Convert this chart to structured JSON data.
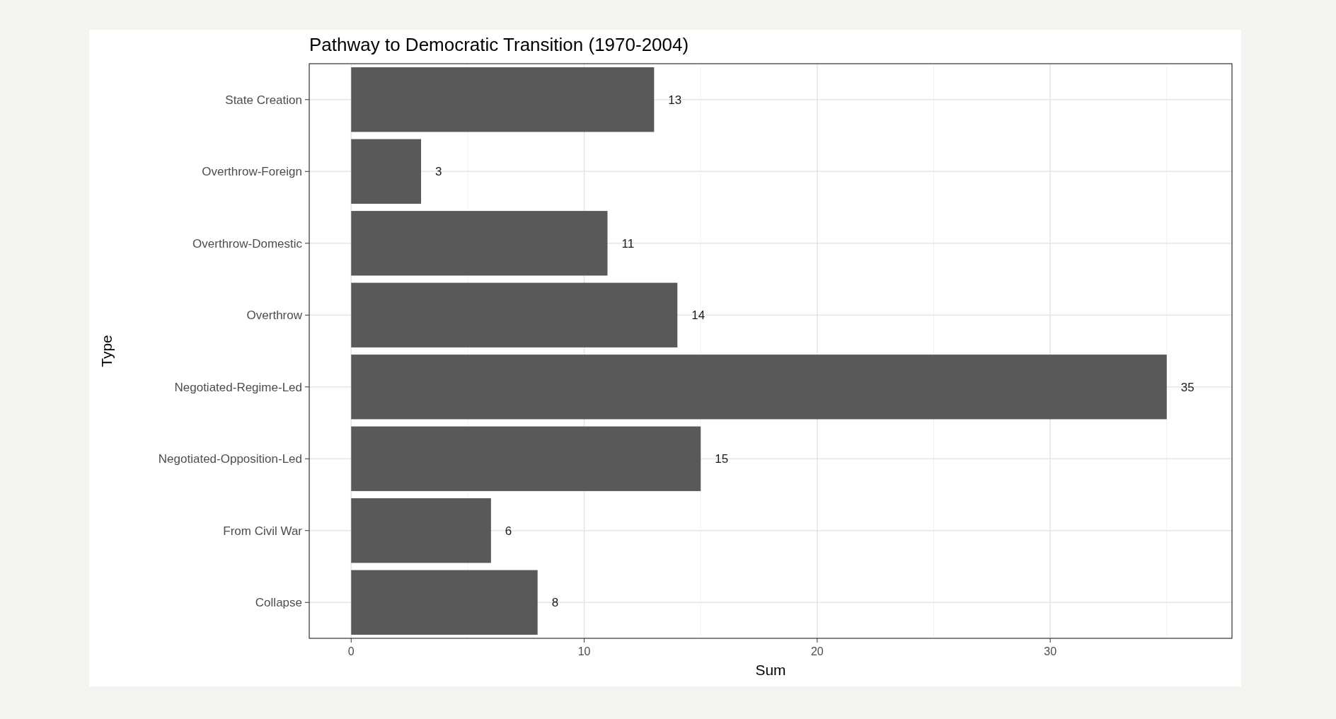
{
  "chart_data": {
    "type": "bar",
    "orientation": "horizontal",
    "title": "Pathway to Democratic Transition (1970-2004)",
    "xlabel": "Sum",
    "ylabel": "Type",
    "categories": [
      "State Creation",
      "Overthrow-Foreign",
      "Overthrow-Domestic",
      "Overthrow",
      "Negotiated-Regime-Led",
      "Negotiated-Opposition-Led",
      "From Civil War",
      "Collapse"
    ],
    "values": [
      13,
      3,
      11,
      14,
      35,
      15,
      6,
      8
    ],
    "color": "#595959",
    "xlim": [
      -1.8,
      37.8
    ],
    "xticks": [
      0,
      10,
      20,
      30
    ],
    "grid": true,
    "data_labels": true
  }
}
